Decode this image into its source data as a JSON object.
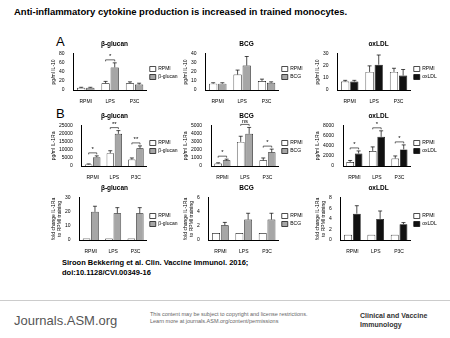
{
  "title": "Anti-inflammatory cytokine production is increased in trained monocytes.",
  "panel_labels": [
    "A",
    "B"
  ],
  "chart_data": [
    {
      "type": "bar",
      "title": "β-glucan",
      "y_label": "pg/ml IL-10",
      "categories": [
        "RPMI",
        "LPS",
        "P3C"
      ],
      "series": [
        {
          "name": "RPMI",
          "color": "#ffffff",
          "values": [
            5,
            15,
            15
          ],
          "errors": [
            1,
            4,
            3
          ]
        },
        {
          "name": "β-glucan",
          "color": "#a6a6a6",
          "values": [
            5,
            50,
            12
          ],
          "errors": [
            1,
            10,
            3
          ]
        }
      ],
      "ylim": [
        0,
        80
      ],
      "yticks": [
        0,
        20,
        40,
        60,
        80
      ],
      "grid": false,
      "legend": "right",
      "significance": [
        {
          "category": "LPS",
          "label": "*"
        }
      ]
    },
    {
      "type": "bar",
      "title": "BCG",
      "y_label": "pg/ml IL-10",
      "categories": [
        "RPMI",
        "LPS",
        "P3C"
      ],
      "series": [
        {
          "name": "RPMI",
          "color": "#ffffff",
          "values": [
            7,
            17,
            10
          ],
          "errors": [
            1,
            5,
            2
          ]
        },
        {
          "name": "BCG",
          "color": "#a6a6a6",
          "values": [
            7,
            27,
            8
          ],
          "errors": [
            1,
            10,
            1
          ]
        }
      ],
      "ylim": [
        0,
        40
      ],
      "yticks": [
        0,
        10,
        20,
        30,
        40
      ],
      "grid": false,
      "legend": "right",
      "significance": []
    },
    {
      "type": "bar",
      "title": "oxLDL",
      "y_label": "pg/ml IL-10",
      "categories": [
        "RPMI",
        "LPS",
        "P3C"
      ],
      "series": [
        {
          "name": "RPMI",
          "color": "#ffffff",
          "values": [
            7,
            15,
            15
          ],
          "errors": [
            1,
            5,
            3
          ]
        },
        {
          "name": "oxLDL",
          "color": "#111111",
          "values": [
            7,
            21,
            12
          ],
          "errors": [
            1,
            8,
            5
          ]
        }
      ],
      "ylim": [
        0,
        30
      ],
      "yticks": [
        0,
        10,
        20,
        30
      ],
      "grid": false,
      "legend": "right",
      "significance": []
    },
    {
      "type": "bar",
      "title": "β-glucan",
      "y_label": "pg/ml IL-1Ra",
      "categories": [
        "RPMI",
        "LPS",
        "P3C"
      ],
      "series": [
        {
          "name": "RPMI",
          "color": "#ffffff",
          "values": [
            1000,
            8000,
            4000
          ],
          "errors": [
            300,
            1500,
            1000
          ]
        },
        {
          "name": "β-glucan",
          "color": "#a6a6a6",
          "values": [
            5500,
            20000,
            11000
          ],
          "errors": [
            800,
            2000,
            1500
          ]
        }
      ],
      "ylim": [
        0,
        25000
      ],
      "yticks": [
        0,
        5000,
        10000,
        15000,
        20000,
        25000
      ],
      "grid": false,
      "legend": "right",
      "significance": [
        {
          "category": "RPMI",
          "label": "*"
        },
        {
          "category": "LPS",
          "label": "**"
        },
        {
          "category": "P3C",
          "label": "**"
        }
      ]
    },
    {
      "type": "bar",
      "title": "BCG",
      "y_label": "pg/ml IL-1Ra",
      "categories": [
        "RPMI",
        "LPS",
        "P3C"
      ],
      "series": [
        {
          "name": "RPMI",
          "color": "#ffffff",
          "values": [
            300,
            3000,
            700
          ],
          "errors": [
            100,
            700,
            300
          ]
        },
        {
          "name": "BCG",
          "color": "#a6a6a6",
          "values": [
            700,
            4000,
            1700
          ],
          "errors": [
            150,
            800,
            400
          ]
        }
      ],
      "ylim": [
        0,
        5000
      ],
      "yticks": [
        0,
        1000,
        2000,
        3000,
        4000,
        5000
      ],
      "grid": false,
      "legend": "right",
      "significance": [
        {
          "category": "RPMI",
          "label": "*"
        },
        {
          "category": "LPS",
          "label": "ns"
        },
        {
          "category": "P3C",
          "label": "*"
        }
      ]
    },
    {
      "type": "bar",
      "title": "oxLDL",
      "y_label": "pg/ml IL-1Ra",
      "categories": [
        "RPMI",
        "LPS",
        "P3C"
      ],
      "series": [
        {
          "name": "RPMI",
          "color": "#ffffff",
          "values": [
            800,
            3000,
            1500
          ],
          "errors": [
            300,
            800,
            500
          ]
        },
        {
          "name": "oxLDL",
          "color": "#111111",
          "values": [
            2500,
            5800,
            3300
          ],
          "errors": [
            500,
            1200,
            900
          ]
        }
      ],
      "ylim": [
        0,
        8000
      ],
      "yticks": [
        0,
        2000,
        4000,
        6000,
        8000
      ],
      "grid": false,
      "legend": "right",
      "significance": [
        {
          "category": "RPMI",
          "label": "*"
        },
        {
          "category": "LPS",
          "label": "*"
        },
        {
          "category": "P3C",
          "label": "*"
        }
      ]
    },
    {
      "type": "bar",
      "title": "β-glucan",
      "y_label": [
        "fold change IL-1Ra",
        "to RPMI training"
      ],
      "categories": [
        "RPMI",
        "LPS",
        "P3C"
      ],
      "series": [
        {
          "name": "RPMI",
          "color": "#ffffff",
          "values": [
            1,
            1,
            1
          ],
          "errors": [
            0,
            0,
            0
          ]
        },
        {
          "name": "β-glucan",
          "color": "#a6a6a6",
          "values": [
            20,
            19,
            19
          ],
          "errors": [
            4,
            4,
            4
          ]
        }
      ],
      "ylim": [
        0,
        30
      ],
      "yticks": [
        0,
        10,
        20,
        30
      ],
      "grid": false,
      "legend": "right",
      "significance": []
    },
    {
      "type": "bar",
      "title": "BCG",
      "y_label": [
        "fold change IL-1Ra",
        "to RPMI training"
      ],
      "categories": [
        "RPMI",
        "LPS",
        "P3C"
      ],
      "series": [
        {
          "name": "RPMI",
          "color": "#ffffff",
          "values": [
            1,
            1,
            1
          ],
          "errors": [
            0,
            0,
            0
          ]
        },
        {
          "name": "BCG",
          "color": "#a6a6a6",
          "values": [
            2.1,
            2.9,
            2.9
          ],
          "errors": [
            0.4,
            0.9,
            0.9
          ]
        }
      ],
      "ylim": [
        0,
        6
      ],
      "yticks": [
        0,
        2,
        4,
        6
      ],
      "grid": false,
      "legend": "right",
      "significance": []
    },
    {
      "type": "bar",
      "title": "oxLDL",
      "y_label": [
        "fold change IL-1Ra",
        "to RPMI training"
      ],
      "categories": [
        "RPMI",
        "LPS",
        "P3C"
      ],
      "series": [
        {
          "name": "RPMI",
          "color": "#ffffff",
          "values": [
            1,
            1,
            1
          ],
          "errors": [
            0,
            0,
            0
          ]
        },
        {
          "name": "oxLDL",
          "color": "#111111",
          "values": [
            5,
            4,
            3
          ],
          "errors": [
            1.5,
            1.5,
            0.3
          ]
        }
      ],
      "ylim": [
        0,
        8
      ],
      "yticks": [
        0,
        2,
        4,
        6,
        8
      ],
      "grid": false,
      "legend": "right",
      "significance": []
    }
  ],
  "citation": [
    "Siroon Bekkering et al. Clin. Vaccine Immunol. 2016;",
    "doi:10.1128/CVI.00349-16"
  ],
  "footer": {
    "site": "Journals.ASM.org",
    "rights": [
      "This content may be subject to copyright and license restrictions.",
      "Learn more at journals.ASM.org/content/permissions"
    ],
    "journal": [
      "Clinical and Vaccine",
      "Immunology"
    ]
  }
}
